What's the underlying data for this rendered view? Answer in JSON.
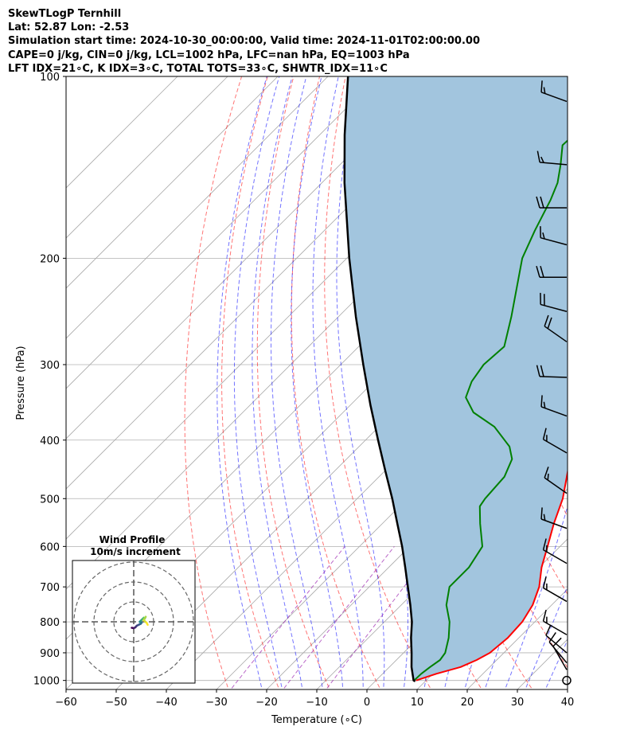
{
  "header": {
    "line1": "SkewTLogP Ternhill",
    "line2": "Lat: 52.87   Lon: -2.53",
    "line3": "Simulation start time: 2024-10-30_00:00:00, Valid time: 2024-11-01T02:00:00.00",
    "line4": "CAPE=0 j/kg, CIN=0 j/kg, LCL=1002 hPa, LFC=nan hPa, EQ=1003 hPa",
    "line5": "LFT IDX=21∘C, K IDX=3∘C, TOTAL TOTS=33∘C, SHWTR_IDX=11∘C"
  },
  "colors": {
    "temperature": "#ff0000",
    "dewpoint": "#008000",
    "parcel": "#000000",
    "cin_fill": "#a2c5de",
    "dry_adiabat": "#ff0000",
    "moist_adiabat": "#0000ff",
    "mixing_ratio": "#9c27b0",
    "isotherm": "#aaaaaa",
    "barb": "#000000"
  },
  "chart_data": {
    "type": "line",
    "subtype": "skew-t log-p",
    "xlabel": "Temperature (∘C)",
    "ylabel": "Pressure (hPa)",
    "xlim": [
      -60,
      40
    ],
    "ylim": [
      1035,
      100
    ],
    "yscale": "log",
    "x_ticks": [
      -60,
      -50,
      -40,
      -30,
      -20,
      -10,
      0,
      10,
      20,
      30,
      40
    ],
    "y_ticks": [
      100,
      200,
      300,
      400,
      500,
      600,
      700,
      800,
      900,
      1000
    ],
    "grid": true,
    "temperature": [
      {
        "p": 1000,
        "t": 8.0
      },
      {
        "p": 975,
        "t": 10.7
      },
      {
        "p": 950,
        "t": 14.2
      },
      {
        "p": 925,
        "t": 16.0
      },
      {
        "p": 900,
        "t": 17.2
      },
      {
        "p": 850,
        "t": 17.8
      },
      {
        "p": 800,
        "t": 17.5
      },
      {
        "p": 750,
        "t": 16.2
      },
      {
        "p": 700,
        "t": 13.9
      },
      {
        "p": 650,
        "t": 10.5
      },
      {
        "p": 600,
        "t": 7.5
      },
      {
        "p": 550,
        "t": 4.2
      },
      {
        "p": 500,
        "t": 1.0
      },
      {
        "p": 450,
        "t": -3.5
      },
      {
        "p": 400,
        "t": -8.0
      },
      {
        "p": 350,
        "t": -13.5
      },
      {
        "p": 300,
        "t": -20.0
      },
      {
        "p": 250,
        "t": -28.5
      },
      {
        "p": 200,
        "t": -38.5
      },
      {
        "p": 180,
        "t": -45.0
      },
      {
        "p": 165,
        "t": -49.0
      },
      {
        "p": 150,
        "t": -51.5
      },
      {
        "p": 135,
        "t": -54.5
      },
      {
        "p": 125,
        "t": -56.0
      },
      {
        "p": 115,
        "t": -58.5
      },
      {
        "p": 108,
        "t": -61.5
      },
      {
        "p": 100,
        "t": -64.0
      }
    ],
    "dewpoint": [
      {
        "p": 1000,
        "t": 7.6
      },
      {
        "p": 975,
        "t": 7.7
      },
      {
        "p": 950,
        "t": 8.1
      },
      {
        "p": 925,
        "t": 8.7
      },
      {
        "p": 900,
        "t": 8.3
      },
      {
        "p": 850,
        "t": 6.0
      },
      {
        "p": 800,
        "t": 3.0
      },
      {
        "p": 750,
        "t": -1.0
      },
      {
        "p": 700,
        "t": -4.0
      },
      {
        "p": 650,
        "t": -4.0
      },
      {
        "p": 600,
        "t": -5.5
      },
      {
        "p": 550,
        "t": -10.5
      },
      {
        "p": 515,
        "t": -14.0
      },
      {
        "p": 500,
        "t": -14.5
      },
      {
        "p": 460,
        "t": -15.0
      },
      {
        "p": 430,
        "t": -17.0
      },
      {
        "p": 410,
        "t": -20.0
      },
      {
        "p": 380,
        "t": -27.0
      },
      {
        "p": 360,
        "t": -34.0
      },
      {
        "p": 340,
        "t": -38.5
      },
      {
        "p": 320,
        "t": -40.5
      },
      {
        "p": 300,
        "t": -41.5
      },
      {
        "p": 280,
        "t": -41.0
      },
      {
        "p": 250,
        "t": -45.5
      },
      {
        "p": 200,
        "t": -55.0
      },
      {
        "p": 180,
        "t": -58.0
      },
      {
        "p": 160,
        "t": -61.0
      },
      {
        "p": 150,
        "t": -63.0
      },
      {
        "p": 140,
        "t": -66.0
      },
      {
        "p": 130,
        "t": -69.5
      },
      {
        "p": 115,
        "t": -69.0
      },
      {
        "p": 100,
        "t": -68.5
      }
    ],
    "parcel": [
      {
        "p": 1003,
        "t": 8.0
      },
      {
        "p": 1000,
        "t": 7.5
      },
      {
        "p": 950,
        "t": 4.4
      },
      {
        "p": 900,
        "t": 1.6
      },
      {
        "p": 850,
        "t": -1.5
      },
      {
        "p": 800,
        "t": -4.5
      },
      {
        "p": 750,
        "t": -8.2
      },
      {
        "p": 700,
        "t": -12.3
      },
      {
        "p": 650,
        "t": -16.7
      },
      {
        "p": 600,
        "t": -21.5
      },
      {
        "p": 550,
        "t": -27.0
      },
      {
        "p": 500,
        "t": -33.0
      },
      {
        "p": 450,
        "t": -39.9
      },
      {
        "p": 400,
        "t": -47.5
      },
      {
        "p": 350,
        "t": -56.0
      },
      {
        "p": 300,
        "t": -65.5
      },
      {
        "p": 250,
        "t": -76.5
      },
      {
        "p": 200,
        "t": -89.5
      },
      {
        "p": 150,
        "t": -105.5
      },
      {
        "p": 125,
        "t": -115.0
      },
      {
        "p": 100,
        "t": -126.0
      }
    ],
    "wind_barbs": [
      {
        "p": 110,
        "speed_kt": 15,
        "direction_deg": 290
      },
      {
        "p": 140,
        "speed_kt": 15,
        "direction_deg": 275
      },
      {
        "p": 165,
        "speed_kt": 20,
        "direction_deg": 270
      },
      {
        "p": 190,
        "speed_kt": 15,
        "direction_deg": 285
      },
      {
        "p": 215,
        "speed_kt": 20,
        "direction_deg": 270
      },
      {
        "p": 245,
        "speed_kt": 20,
        "direction_deg": 285
      },
      {
        "p": 275,
        "speed_kt": 20,
        "direction_deg": 305
      },
      {
        "p": 315,
        "speed_kt": 20,
        "direction_deg": 272
      },
      {
        "p": 365,
        "speed_kt": 15,
        "direction_deg": 290
      },
      {
        "p": 420,
        "speed_kt": 15,
        "direction_deg": 300
      },
      {
        "p": 490,
        "speed_kt": 15,
        "direction_deg": 305
      },
      {
        "p": 560,
        "speed_kt": 15,
        "direction_deg": 290
      },
      {
        "p": 640,
        "speed_kt": 15,
        "direction_deg": 300
      },
      {
        "p": 740,
        "speed_kt": 15,
        "direction_deg": 300
      },
      {
        "p": 840,
        "speed_kt": 15,
        "direction_deg": 300
      },
      {
        "p": 900,
        "speed_kt": 10,
        "direction_deg": 310
      },
      {
        "p": 935,
        "speed_kt": 10,
        "direction_deg": 320
      },
      {
        "p": 960,
        "speed_kt": 10,
        "direction_deg": 330
      },
      {
        "p": 1000,
        "speed_kt": 0,
        "direction_deg": 0
      }
    ],
    "hodograph": {
      "title_line1": "Wind Profile",
      "title_line2": "10m/s increment",
      "ring_increment_ms": 10,
      "rings": 3,
      "points": [
        {
          "u": -1.0,
          "v": -3.0
        },
        {
          "u": 0.0,
          "v": -3.2
        },
        {
          "u": 0.8,
          "v": -2.8
        },
        {
          "u": 1.5,
          "v": -2.0
        },
        {
          "u": 2.5,
          "v": -1.5
        },
        {
          "u": 3.5,
          "v": -1.0
        },
        {
          "u": 4.0,
          "v": -0.5
        },
        {
          "u": 3.0,
          "v": 0.0
        },
        {
          "u": 3.5,
          "v": 0.5
        },
        {
          "u": 4.0,
          "v": 1.0
        },
        {
          "u": 4.5,
          "v": 1.5
        },
        {
          "u": 5.0,
          "v": 2.0
        },
        {
          "u": 5.5,
          "v": 1.5
        },
        {
          "u": 6.0,
          "v": 2.5
        },
        {
          "u": 5.0,
          "v": 0.8
        },
        {
          "u": 6.5,
          "v": -0.5
        },
        {
          "u": 7.0,
          "v": -1.5
        }
      ]
    }
  }
}
